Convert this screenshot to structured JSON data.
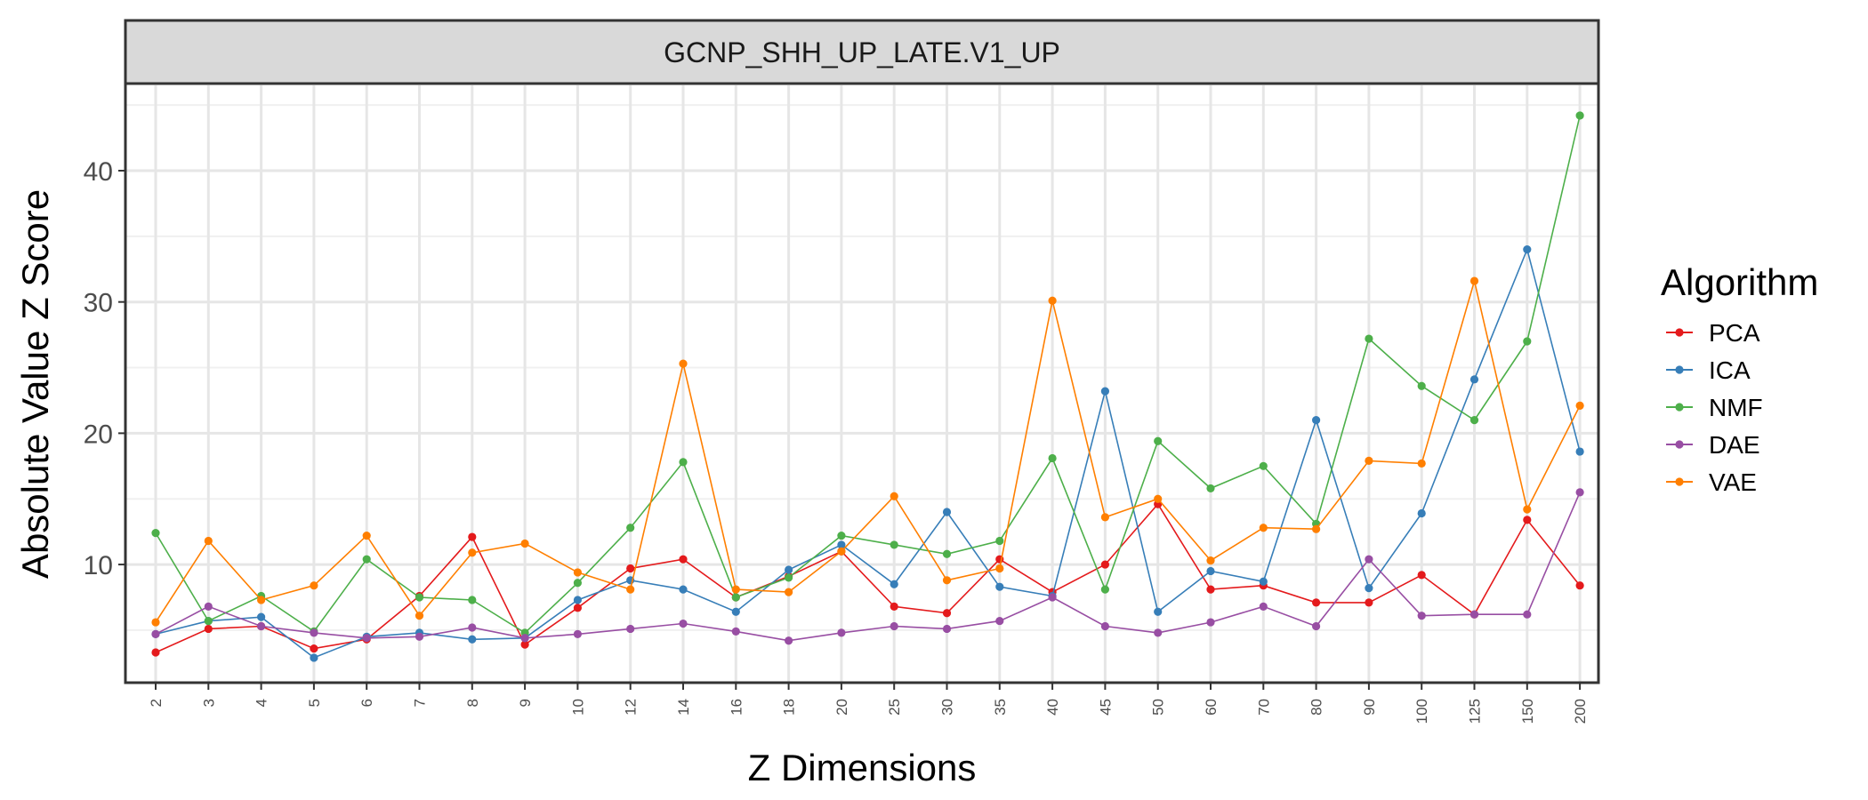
{
  "chart_data": {
    "type": "line",
    "facet_title": "GCNP_SHH_UP_LATE.V1_UP",
    "xlabel": "Z Dimensions",
    "ylabel": "Absolute Value Z Score",
    "categories": [
      "2",
      "3",
      "4",
      "5",
      "6",
      "7",
      "8",
      "9",
      "10",
      "12",
      "14",
      "16",
      "18",
      "20",
      "25",
      "30",
      "35",
      "40",
      "45",
      "50",
      "60",
      "70",
      "80",
      "90",
      "100",
      "125",
      "150",
      "200"
    ],
    "ylim": [
      1,
      46.5
    ],
    "yticks": [
      10,
      20,
      30,
      40
    ],
    "grid": true,
    "legend": {
      "title": "Algorithm",
      "position": "right"
    },
    "series": [
      {
        "name": "PCA",
        "color": "#e41a1c",
        "values": [
          3.3,
          5.1,
          5.3,
          3.6,
          4.3,
          7.6,
          12.1,
          3.9,
          6.7,
          9.7,
          10.4,
          7.5,
          9.1,
          11.0,
          6.8,
          6.3,
          10.4,
          7.9,
          10.0,
          14.6,
          8.1,
          8.4,
          7.1,
          7.1,
          9.2,
          6.2,
          13.4,
          8.4
        ]
      },
      {
        "name": "ICA",
        "color": "#377eb8",
        "values": [
          4.7,
          5.7,
          6.0,
          2.9,
          4.5,
          4.8,
          4.3,
          4.4,
          7.3,
          8.8,
          8.1,
          6.4,
          9.6,
          11.5,
          8.5,
          14.0,
          8.3,
          7.6,
          23.2,
          6.4,
          9.5,
          8.7,
          21.0,
          8.2,
          13.9,
          24.1,
          34.0,
          18.6
        ]
      },
      {
        "name": "NMF",
        "color": "#4daf4a",
        "values": [
          12.4,
          5.7,
          7.6,
          4.9,
          10.4,
          7.5,
          7.3,
          4.8,
          8.6,
          12.8,
          17.8,
          7.5,
          9.0,
          12.2,
          11.5,
          10.8,
          11.8,
          18.1,
          8.1,
          19.4,
          15.8,
          17.5,
          13.1,
          27.2,
          23.6,
          21.0,
          27.0,
          44.2
        ]
      },
      {
        "name": "DAE",
        "color": "#984ea3",
        "values": [
          4.7,
          6.8,
          5.3,
          4.8,
          4.4,
          4.5,
          5.2,
          4.4,
          4.7,
          5.1,
          5.5,
          4.9,
          4.2,
          4.8,
          5.3,
          5.1,
          5.7,
          7.5,
          5.3,
          4.8,
          5.6,
          6.8,
          5.3,
          10.4,
          6.1,
          6.2,
          6.2,
          15.5
        ]
      },
      {
        "name": "VAE",
        "color": "#ff7f00",
        "values": [
          5.6,
          11.8,
          7.3,
          8.4,
          12.2,
          6.1,
          10.9,
          11.6,
          9.4,
          8.1,
          25.3,
          8.1,
          7.9,
          11.0,
          15.2,
          8.8,
          9.7,
          30.1,
          13.6,
          15.0,
          10.3,
          12.8,
          12.7,
          17.9,
          17.7,
          31.6,
          14.2,
          22.1
        ]
      }
    ]
  }
}
